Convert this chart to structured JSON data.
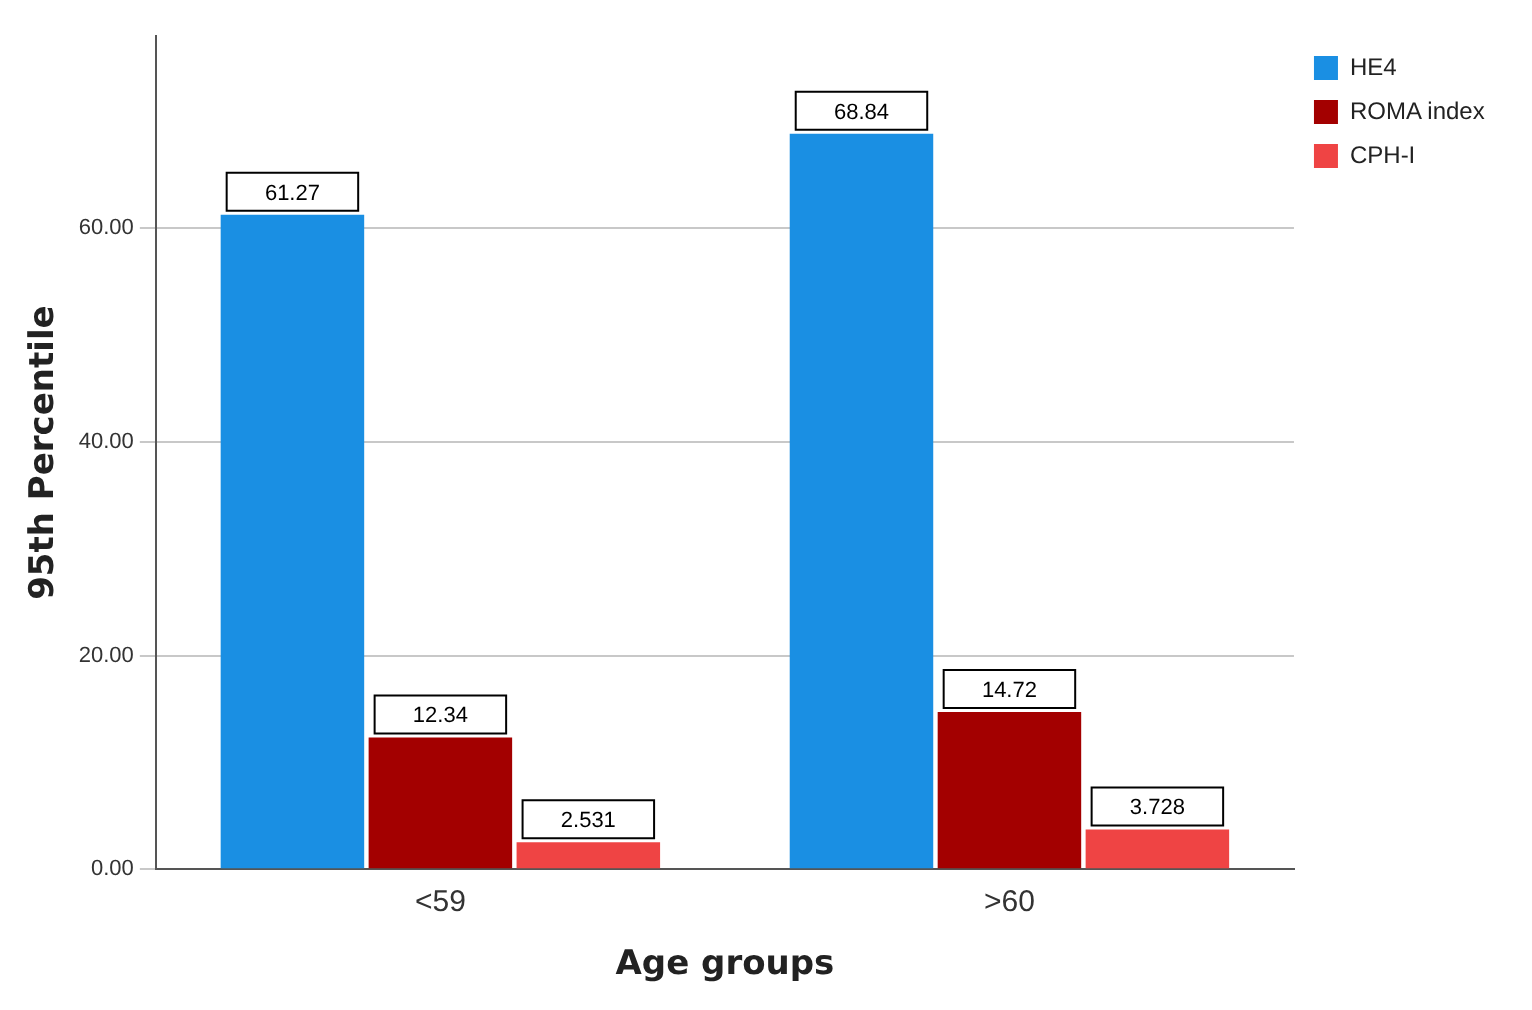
{
  "chart_data": {
    "type": "bar",
    "xlabel": "Age groups",
    "ylabel": "95th Percentile",
    "categories": [
      "<59",
      ">60"
    ],
    "series": [
      {
        "name": "HE4",
        "color": "#1a8fe3",
        "values": [
          61.27,
          68.84
        ]
      },
      {
        "name": "ROMA index",
        "color": "#a30000",
        "values": [
          12.34,
          14.72
        ]
      },
      {
        "name": "CPH-I",
        "color": "#ef4444",
        "values": [
          2.531,
          3.728
        ]
      }
    ],
    "ylim": [
      0,
      78
    ],
    "yticks": [
      {
        "value": 0,
        "label": "0.00"
      },
      {
        "value": 20,
        "label": "20.00"
      },
      {
        "value": 40,
        "label": "40.00"
      },
      {
        "value": 60,
        "label": "60.00"
      }
    ],
    "grid": "y",
    "legend": "top right",
    "data_labels": true
  }
}
